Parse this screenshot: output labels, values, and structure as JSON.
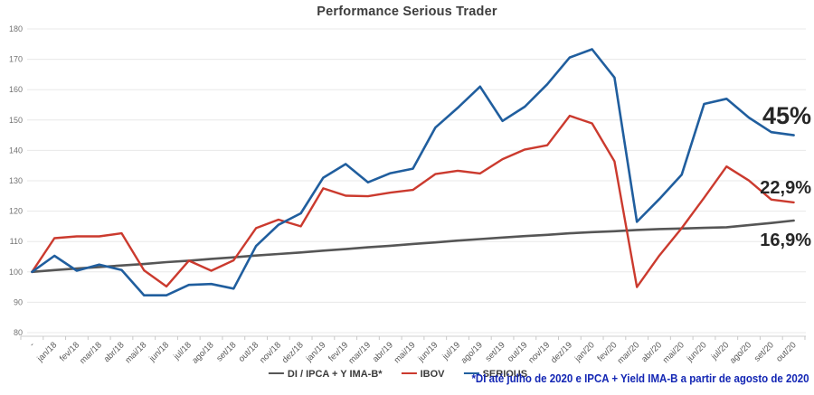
{
  "chart_data": {
    "type": "line",
    "title": "Performance Serious Trader",
    "footnote": "*DI até julho de 2020 e IPCA + Yield IMA-B a partir de agosto de 2020",
    "ylim": [
      80,
      180
    ],
    "yticks": [
      180,
      170,
      160,
      150,
      140,
      130,
      120,
      110,
      100,
      90,
      80
    ],
    "grid": "horizontal",
    "legend_position": "bottom",
    "categories": [
      "-",
      "jan/18",
      "fev/18",
      "mar/18",
      "abr/18",
      "mai/18",
      "jun/18",
      "jul/18",
      "ago/18",
      "set/18",
      "out/18",
      "nov/18",
      "dez/18",
      "jan/19",
      "fev/19",
      "mar/19",
      "abr/19",
      "mai/19",
      "jun/19",
      "jul/19",
      "ago/19",
      "set/19",
      "out/19",
      "nov/19",
      "dez/19",
      "jan/20",
      "fev/20",
      "mar/20",
      "abr/20",
      "mai/20",
      "jun/20",
      "jul/20",
      "ago/20",
      "set/20",
      "out/20"
    ],
    "series": [
      {
        "name": "DI / IPCA + Y IMA-B*",
        "color": "#565656",
        "width": 2.6,
        "values": [
          100,
          100.6,
          101.1,
          101.6,
          102.1,
          102.6,
          103.2,
          103.7,
          104.3,
          104.8,
          105.4,
          105.9,
          106.4,
          107.0,
          107.5,
          108.1,
          108.6,
          109.2,
          109.7,
          110.3,
          110.8,
          111.3,
          111.8,
          112.2,
          112.7,
          113.1,
          113.4,
          113.8,
          114.1,
          114.3,
          114.5,
          114.7,
          115.4,
          116.1,
          116.9
        ]
      },
      {
        "name": "IBOV",
        "color": "#CB3A2E",
        "width": 2.4,
        "values": [
          100,
          111.1,
          111.7,
          111.7,
          112.7,
          100.5,
          95.2,
          103.7,
          100.4,
          103.8,
          114.4,
          117.2,
          115.0,
          127.5,
          125.1,
          124.9,
          126.1,
          127.0,
          132.2,
          133.3,
          132.4,
          137.1,
          140.3,
          141.7,
          151.4,
          148.9,
          136.4,
          95.0,
          105.4,
          114.4,
          124.4,
          134.7,
          130.1,
          123.8,
          122.9
        ]
      },
      {
        "name": "SERIOUS",
        "color": "#205E9E",
        "width": 2.6,
        "values": [
          100,
          105.3,
          100.4,
          102.4,
          100.6,
          92.3,
          92.3,
          95.7,
          96.0,
          94.5,
          108.5,
          115.5,
          119.3,
          131.0,
          135.5,
          129.5,
          132.5,
          134.0,
          147.5,
          154.0,
          161.0,
          149.7,
          154.4,
          161.8,
          170.6,
          173.3,
          164.0,
          116.5,
          124.0,
          132.0,
          155.3,
          157.0,
          150.8,
          146.0,
          145.0
        ]
      }
    ],
    "annotations": [
      {
        "text": "45%",
        "y": 137,
        "size": 27
      },
      {
        "text": "22,9%",
        "y": 214,
        "size": 20
      },
      {
        "text": "16,9%",
        "y": 272,
        "size": 20
      }
    ]
  }
}
